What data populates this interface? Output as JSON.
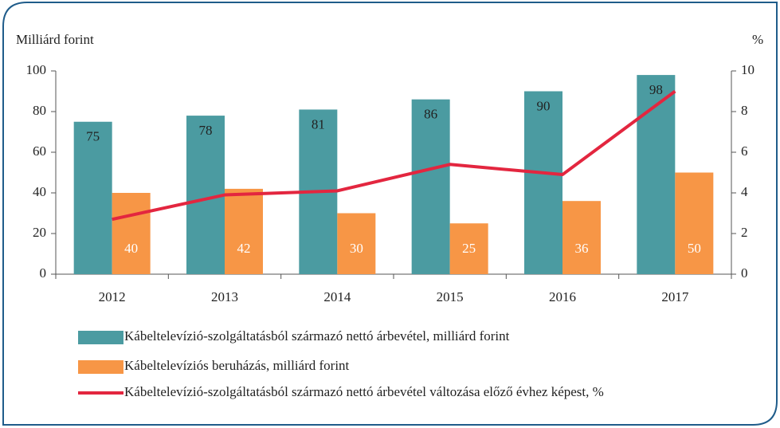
{
  "chart_data": {
    "type": "bar_line",
    "y_label": "Milliárd forint",
    "y2_label": "%",
    "categories": [
      "2012",
      "2013",
      "2014",
      "2015",
      "2016",
      "2017"
    ],
    "series": [
      {
        "name": "Kábeltelevízió-szolgáltatásból származó nettó árbevétel, milliárd forint",
        "color": "#4b9ba1",
        "type": "bar",
        "values": [
          75,
          78,
          81,
          86,
          90,
          98
        ]
      },
      {
        "name": "Kábeltelevíziós beruházás, milliárd forint",
        "color": "#f79646",
        "type": "bar",
        "values": [
          40,
          42,
          30,
          25,
          36,
          50
        ]
      },
      {
        "name": "Kábeltelevízió-szolgáltatásból származó nettó árbevétel változása előző évhez képest, %",
        "color": "#e3263f",
        "type": "line",
        "axis": "y2",
        "values": [
          2.7,
          3.9,
          4.1,
          5.4,
          4.9,
          9.0
        ]
      }
    ],
    "ylim": [
      0,
      100
    ],
    "yticks": [
      0,
      20,
      40,
      60,
      80,
      100
    ],
    "y2lim": [
      0,
      10
    ],
    "y2ticks": [
      0,
      2,
      4,
      6,
      8,
      10
    ]
  }
}
